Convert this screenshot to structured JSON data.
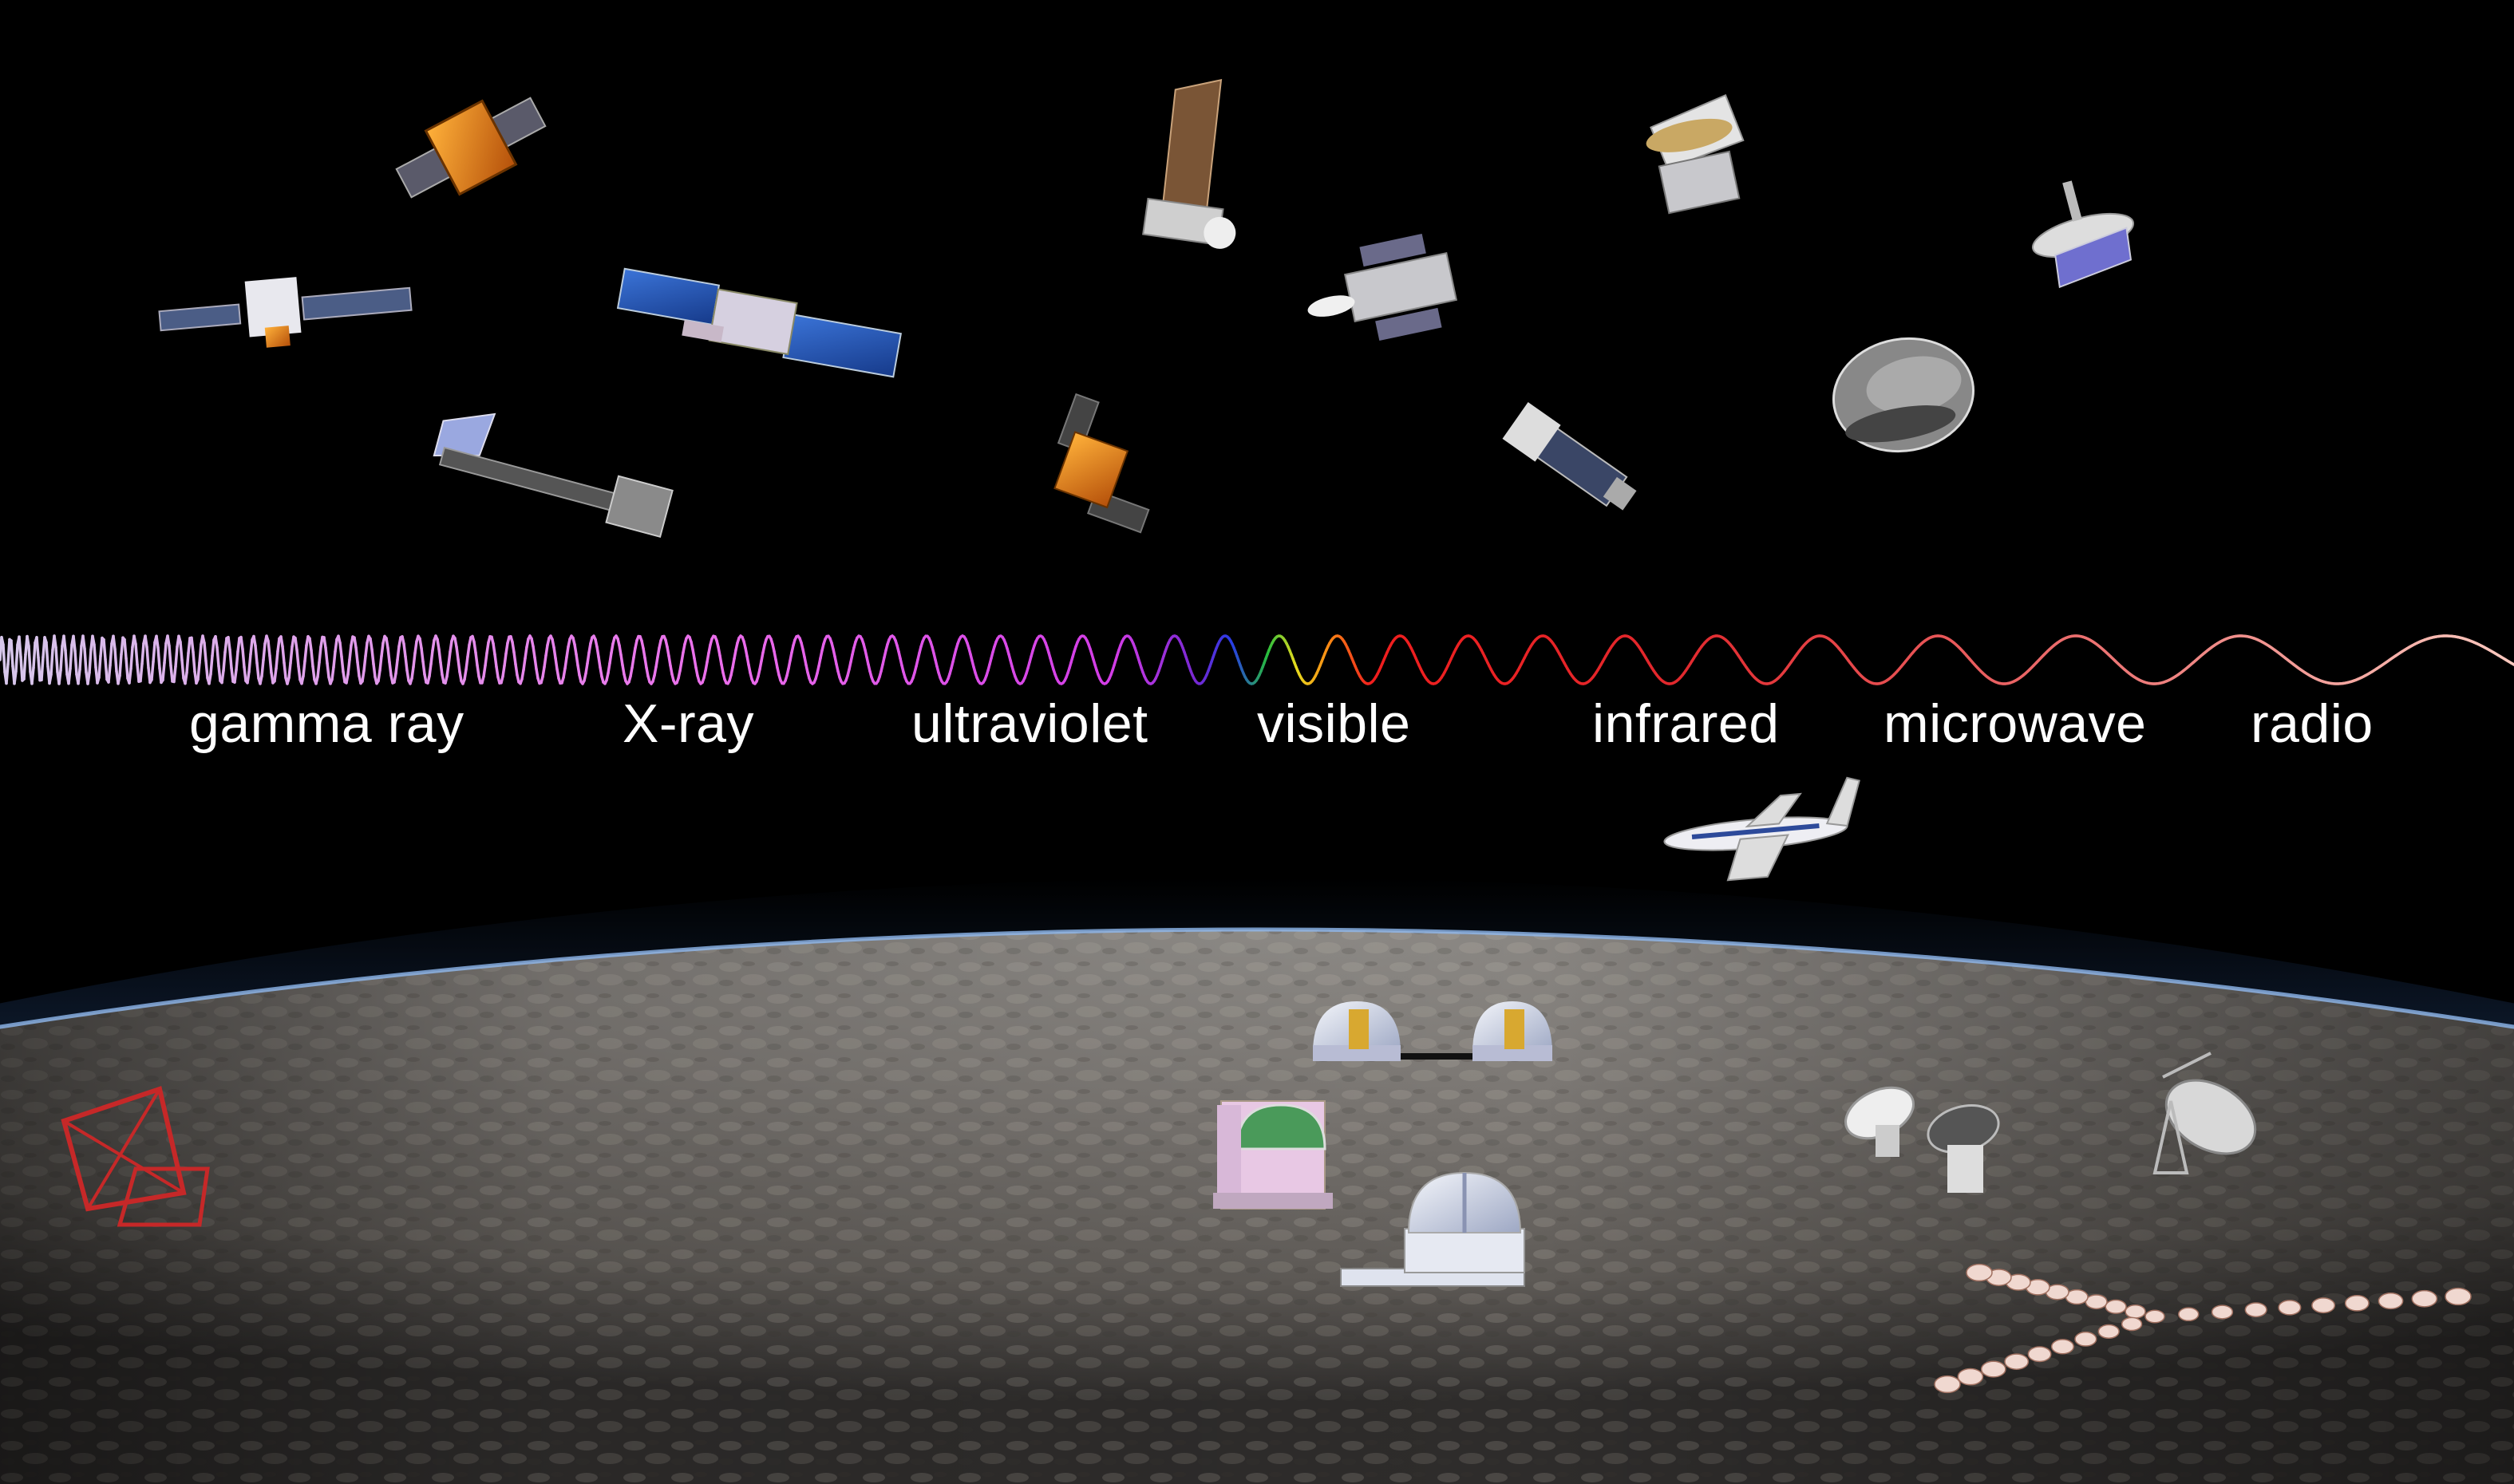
{
  "spectrum": {
    "bands": [
      {
        "id": "gamma",
        "label": "gamma ray"
      },
      {
        "id": "xray",
        "label": "X-ray"
      },
      {
        "id": "uv",
        "label": "ultraviolet"
      },
      {
        "id": "visible",
        "label": "visible"
      },
      {
        "id": "ir",
        "label": "infrared"
      },
      {
        "id": "microwave",
        "label": "microwave"
      },
      {
        "id": "radio",
        "label": "radio"
      }
    ]
  }
}
